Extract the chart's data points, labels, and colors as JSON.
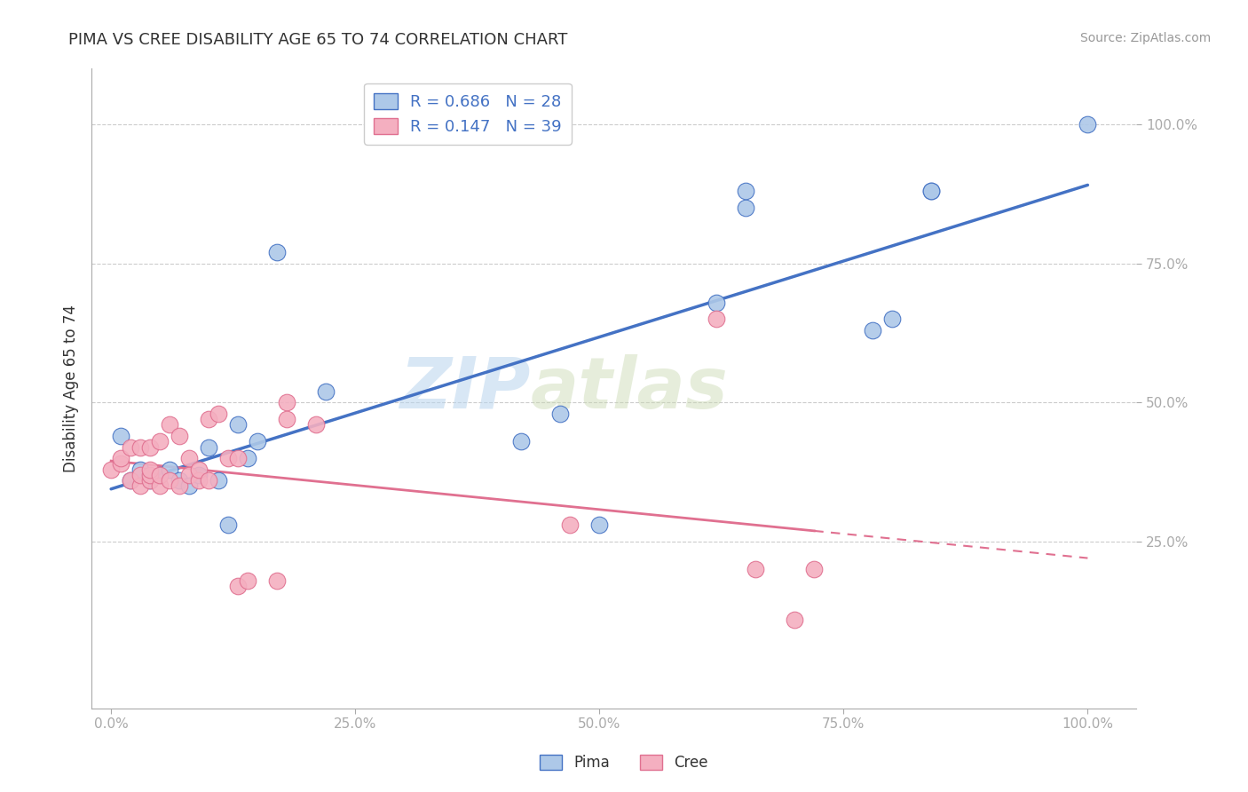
{
  "title": "PIMA VS CREE DISABILITY AGE 65 TO 74 CORRELATION CHART",
  "source_text": "Source: ZipAtlas.com",
  "ylabel": "Disability Age 65 to 74",
  "pima_R": 0.686,
  "pima_N": 28,
  "cree_R": 0.147,
  "cree_N": 39,
  "pima_color": "#adc8e8",
  "cree_color": "#f4afc0",
  "pima_line_color": "#4472c4",
  "cree_line_color": "#e07090",
  "watermark_1": "ZIP",
  "watermark_2": "atlas",
  "pima_x": [
    0.01,
    0.02,
    0.03,
    0.04,
    0.05,
    0.06,
    0.07,
    0.08,
    0.09,
    0.1,
    0.11,
    0.12,
    0.13,
    0.14,
    0.15,
    0.17,
    0.22,
    0.42,
    0.46,
    0.5,
    0.62,
    0.65,
    0.65,
    0.78,
    0.8,
    0.84,
    0.84,
    1.0
  ],
  "pima_y": [
    0.44,
    0.36,
    0.38,
    0.36,
    0.37,
    0.38,
    0.36,
    0.35,
    0.37,
    0.42,
    0.36,
    0.28,
    0.46,
    0.4,
    0.43,
    0.77,
    0.52,
    0.43,
    0.48,
    0.28,
    0.68,
    0.85,
    0.88,
    0.63,
    0.65,
    0.88,
    0.88,
    1.0
  ],
  "cree_x": [
    0.0,
    0.01,
    0.01,
    0.02,
    0.02,
    0.03,
    0.03,
    0.03,
    0.04,
    0.04,
    0.04,
    0.04,
    0.05,
    0.05,
    0.05,
    0.06,
    0.06,
    0.07,
    0.07,
    0.08,
    0.08,
    0.09,
    0.09,
    0.1,
    0.1,
    0.11,
    0.12,
    0.13,
    0.13,
    0.14,
    0.17,
    0.18,
    0.18,
    0.21,
    0.47,
    0.62,
    0.66,
    0.7,
    0.72
  ],
  "cree_y": [
    0.38,
    0.39,
    0.4,
    0.36,
    0.42,
    0.35,
    0.37,
    0.42,
    0.36,
    0.37,
    0.38,
    0.42,
    0.35,
    0.37,
    0.43,
    0.36,
    0.46,
    0.35,
    0.44,
    0.37,
    0.4,
    0.36,
    0.38,
    0.36,
    0.47,
    0.48,
    0.4,
    0.17,
    0.4,
    0.18,
    0.18,
    0.5,
    0.47,
    0.46,
    0.28,
    0.65,
    0.2,
    0.11,
    0.2
  ],
  "xlim": [
    -0.02,
    1.05
  ],
  "ylim": [
    -0.05,
    1.1
  ],
  "xticks": [
    0.0,
    0.25,
    0.5,
    0.75,
    1.0
  ],
  "yticks": [
    0.25,
    0.5,
    0.75,
    1.0
  ],
  "xtick_labels": [
    "0.0%",
    "25.0%",
    "50.0%",
    "75.0%",
    "100.0%"
  ],
  "ytick_labels": [
    "25.0%",
    "50.0%",
    "75.0%",
    "100.0%"
  ],
  "background_color": "#ffffff",
  "grid_color": "#cccccc"
}
